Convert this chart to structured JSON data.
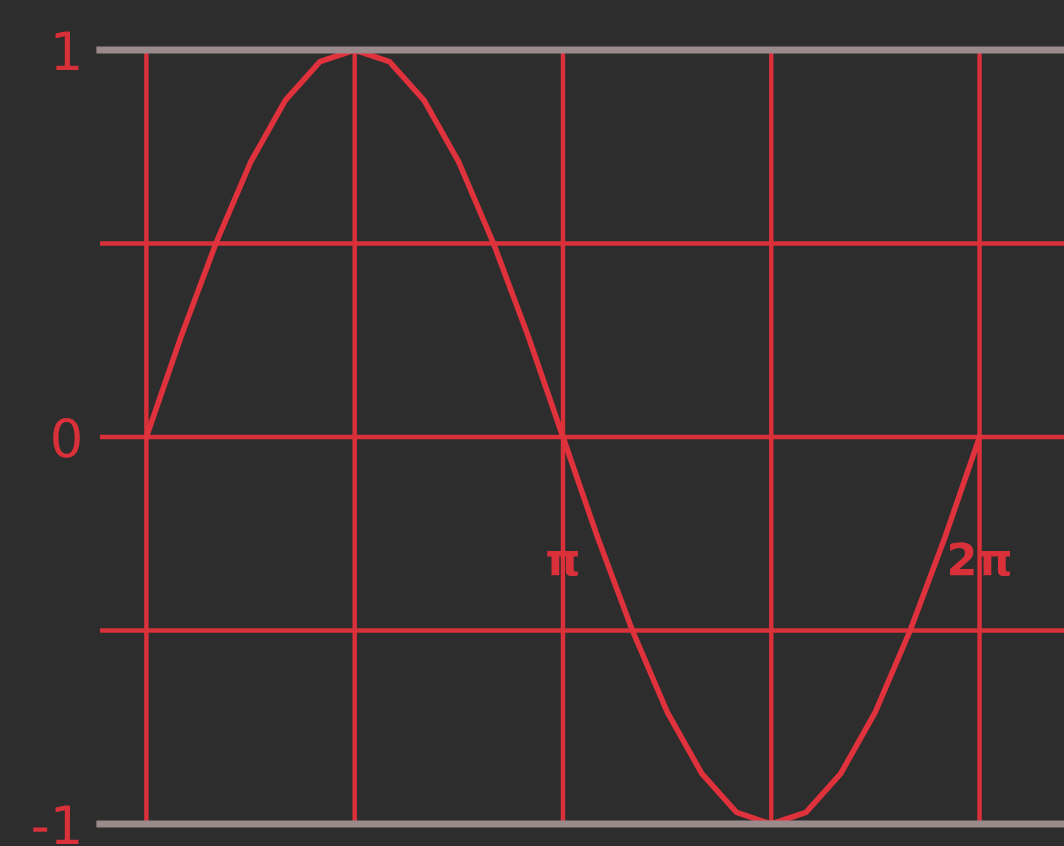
{
  "chart_data": {
    "type": "line",
    "x": [
      0,
      0.2618,
      0.5236,
      0.7854,
      1.0472,
      1.309,
      1.5708,
      1.8326,
      2.0944,
      2.3562,
      2.618,
      2.8798,
      3.1416,
      3.4034,
      3.6652,
      3.927,
      4.1888,
      4.4506,
      4.7124,
      4.9742,
      5.236,
      5.4978,
      5.7596,
      6.0214,
      6.2832
    ],
    "series": [
      {
        "color": "#e0323c",
        "values": [
          0,
          0.26,
          0.5,
          0.71,
          0.87,
          0.97,
          1,
          0.97,
          0.87,
          0.71,
          0.5,
          0.26,
          0,
          -0.26,
          -0.5,
          -0.71,
          -0.87,
          -0.97,
          -1,
          -0.97,
          -0.87,
          -0.71,
          -0.5,
          -0.26,
          0
        ]
      }
    ],
    "xlim": [
      -0.35,
      6.92
    ],
    "ylim": [
      -1,
      1
    ],
    "xticks": [
      {
        "value": 0,
        "label": null
      },
      {
        "value": 1.5708,
        "label": null
      },
      {
        "value": 3.1416,
        "label": "π"
      },
      {
        "value": 4.7124,
        "label": null
      },
      {
        "value": 6.2832,
        "label": "2π"
      }
    ],
    "yticks": [
      {
        "value": -1,
        "label": "-1"
      },
      {
        "value": -0.5,
        "label": null
      },
      0,
      {
        "value": 0.5,
        "label": null
      },
      1
    ],
    "grid": true,
    "marker": "none",
    "line_style": "solid"
  }
}
